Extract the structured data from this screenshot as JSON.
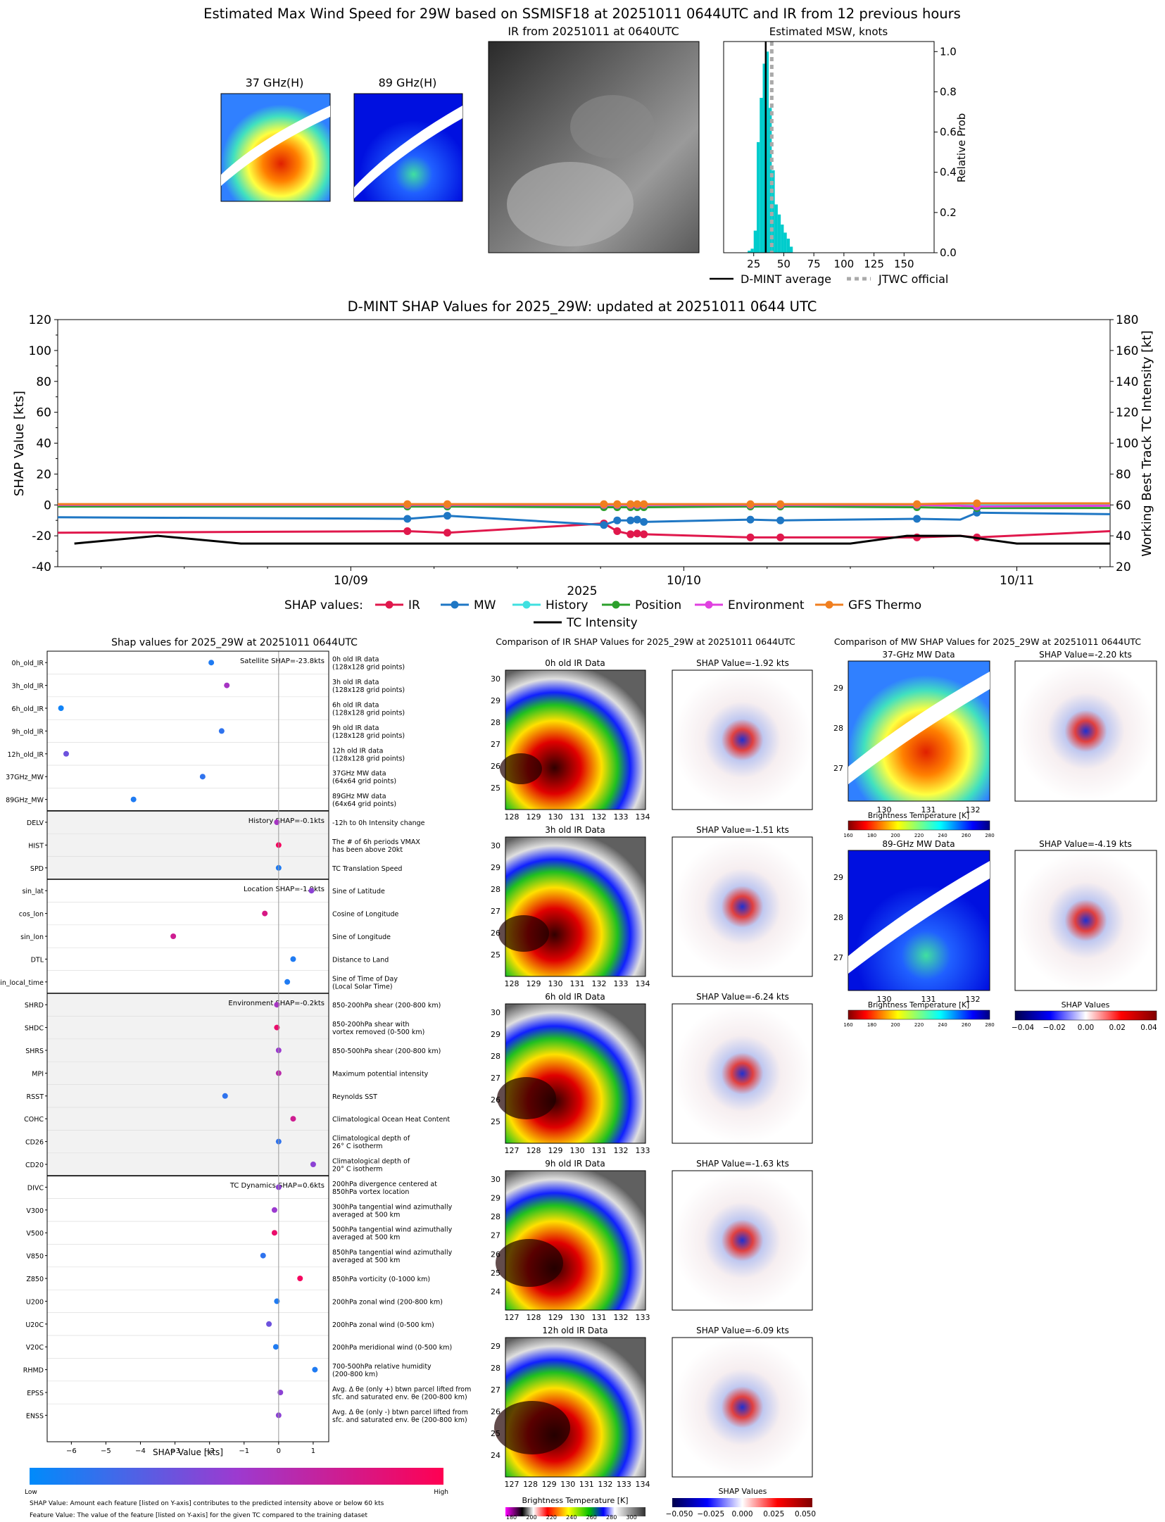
{
  "top": {
    "suptitle": "Estimated Max Wind Speed for 29W based on SSMISF18 at 20251011 0644UTC and IR from 12 previous hours",
    "panel_37_title": "37 GHz(H)",
    "panel_89_title": "89 GHz(H)",
    "panel_ir_title": "IR from 20251011 at 0640UTC",
    "hist": {
      "title": "Estimated MSW, knots",
      "ylabel": "Relative Prob",
      "xticks": [
        25,
        50,
        75,
        100,
        125,
        150
      ],
      "yticks": [
        0.0,
        0.2,
        0.4,
        0.6,
        0.8,
        1.0
      ],
      "bins": [
        {
          "x": 20,
          "p": 0.01
        },
        {
          "x": 22.5,
          "p": 0.02
        },
        {
          "x": 25,
          "p": 0.11
        },
        {
          "x": 27.5,
          "p": 0.55
        },
        {
          "x": 30,
          "p": 0.77
        },
        {
          "x": 32.5,
          "p": 0.94
        },
        {
          "x": 35,
          "p": 1.0
        },
        {
          "x": 37.5,
          "p": 0.72
        },
        {
          "x": 40,
          "p": 0.41
        },
        {
          "x": 42.5,
          "p": 0.24
        },
        {
          "x": 45,
          "p": 0.19
        },
        {
          "x": 47.5,
          "p": 0.14
        },
        {
          "x": 50,
          "p": 0.1
        },
        {
          "x": 52.5,
          "p": 0.07
        },
        {
          "x": 55,
          "p": 0.03
        }
      ],
      "dmint_average": 35,
      "jtwc_official": 40,
      "legend_dmint": "D-MINT average",
      "legend_jtwc": "JTWC official",
      "bar_color": "#00cccc"
    }
  },
  "chart_data": {
    "type": "line",
    "title": "D-MINT SHAP Values for 2025_29W: updated at 20251011 0644 UTC",
    "ylabel": "SHAP Value [kts]",
    "ylabel_right": "Working Best Track TC Intensity [kt]",
    "xlabel": "2025",
    "ylim": [
      -40,
      120
    ],
    "ylim_right": [
      20,
      180
    ],
    "yticks": [
      -40,
      -20,
      0,
      20,
      40,
      60,
      80,
      100,
      120
    ],
    "yticks_right": [
      20,
      40,
      60,
      80,
      100,
      120,
      140,
      160,
      180
    ],
    "xlim": [
      8.12,
      11.28
    ],
    "xticks": [
      {
        "v": 9.0,
        "label": "10/09"
      },
      {
        "v": 10.0,
        "label": "10/10"
      },
      {
        "v": 11.0,
        "label": "10/11"
      }
    ],
    "legend_title": "SHAP values:",
    "series": [
      {
        "name": "IR",
        "color": "#e0184c",
        "points": [
          [
            8.12,
            -18
          ],
          [
            9.17,
            -17
          ],
          [
            9.29,
            -18
          ],
          [
            9.76,
            -12
          ],
          [
            9.8,
            -17
          ],
          [
            9.84,
            -19
          ],
          [
            9.86,
            -18.5
          ],
          [
            9.88,
            -19
          ],
          [
            10.2,
            -21
          ],
          [
            10.29,
            -21
          ],
          [
            10.7,
            -21
          ],
          [
            10.83,
            -20
          ],
          [
            10.88,
            -21
          ],
          [
            11.28,
            -17
          ]
        ]
      },
      {
        "name": "MW",
        "color": "#1f77c4",
        "points": [
          [
            8.12,
            -8
          ],
          [
            9.17,
            -9
          ],
          [
            9.29,
            -7
          ],
          [
            9.76,
            -13
          ],
          [
            9.8,
            -10
          ],
          [
            9.84,
            -10
          ],
          [
            9.86,
            -9.5
          ],
          [
            9.88,
            -11
          ],
          [
            10.2,
            -9.5
          ],
          [
            10.29,
            -10
          ],
          [
            10.7,
            -9
          ],
          [
            10.83,
            -9.5
          ],
          [
            10.88,
            -5
          ],
          [
            11.28,
            -6
          ]
        ]
      },
      {
        "name": "History",
        "color": "#40e0e0",
        "points": [
          [
            8.12,
            0
          ],
          [
            9.17,
            0
          ],
          [
            9.29,
            0
          ],
          [
            9.76,
            0
          ],
          [
            9.8,
            0
          ],
          [
            9.84,
            0
          ],
          [
            9.86,
            0
          ],
          [
            9.88,
            0
          ],
          [
            10.2,
            0
          ],
          [
            10.29,
            0
          ],
          [
            10.7,
            0
          ],
          [
            10.83,
            0
          ],
          [
            10.88,
            0
          ],
          [
            11.28,
            0
          ]
        ]
      },
      {
        "name": "Position",
        "color": "#2ca02c",
        "points": [
          [
            8.12,
            -1
          ],
          [
            9.17,
            -1
          ],
          [
            9.29,
            -1
          ],
          [
            9.76,
            -1.5
          ],
          [
            9.8,
            -1.5
          ],
          [
            9.84,
            -1.5
          ],
          [
            9.86,
            -1.5
          ],
          [
            9.88,
            -1.5
          ],
          [
            10.2,
            -1
          ],
          [
            10.29,
            -1
          ],
          [
            10.7,
            -1.5
          ],
          [
            10.83,
            -2
          ],
          [
            10.88,
            -2
          ],
          [
            11.28,
            -2
          ]
        ]
      },
      {
        "name": "Environment",
        "color": "#e040e0",
        "points": [
          [
            8.12,
            0
          ],
          [
            9.17,
            0
          ],
          [
            9.29,
            0
          ],
          [
            9.76,
            0
          ],
          [
            9.8,
            0
          ],
          [
            9.84,
            0
          ],
          [
            9.86,
            0
          ],
          [
            9.88,
            0
          ],
          [
            10.2,
            0
          ],
          [
            10.29,
            0
          ],
          [
            10.7,
            0
          ],
          [
            10.83,
            -0.5
          ],
          [
            10.88,
            -1
          ],
          [
            11.28,
            -0.5
          ]
        ]
      },
      {
        "name": "GFS Thermo",
        "color": "#f07f20",
        "points": [
          [
            8.12,
            0.5
          ],
          [
            9.17,
            0.5
          ],
          [
            9.29,
            0.5
          ],
          [
            9.76,
            0.5
          ],
          [
            9.8,
            0.5
          ],
          [
            9.84,
            0.5
          ],
          [
            9.86,
            0.5
          ],
          [
            9.88,
            0.5
          ],
          [
            10.2,
            0.5
          ],
          [
            10.29,
            0.5
          ],
          [
            10.7,
            0.5
          ],
          [
            10.83,
            1
          ],
          [
            10.88,
            1
          ],
          [
            11.28,
            1
          ]
        ]
      }
    ],
    "marker_times": [
      9.17,
      9.29,
      9.76,
      9.8,
      9.84,
      9.86,
      9.88,
      10.2,
      10.29,
      10.7,
      10.88
    ],
    "intensity": {
      "name": "TC Intensity",
      "color": "#000000",
      "points": [
        [
          8.17,
          35
        ],
        [
          8.42,
          40
        ],
        [
          8.67,
          35
        ],
        [
          9.67,
          35
        ],
        [
          10.17,
          35
        ],
        [
          10.5,
          35
        ],
        [
          10.67,
          40
        ],
        [
          10.83,
          40
        ],
        [
          11.0,
          35
        ],
        [
          11.28,
          35
        ]
      ]
    }
  },
  "shap_features": {
    "title": "Shap values for 2025_29W at 20251011 0644UTC",
    "xlabel": "SHAP Value [kts]",
    "xticks": [
      -6,
      -5,
      -4,
      -3,
      -2,
      -1,
      0,
      1
    ],
    "xlim": [
      -6.7,
      1.45
    ],
    "colorbar_low": "Low",
    "colorbar_high": "High",
    "footnote1": "SHAP Value: Amount each feature [listed on Y-axis] contributes to the predicted intensity above or below 60 kts",
    "footnote2": "Feature Value: The value of the feature [listed on Y-axis] for the given TC compared to the training dataset",
    "groups": [
      {
        "label": "Satellite SHAP=-23.8kts",
        "shade": false,
        "features": [
          {
            "name": "0h_old_IR",
            "desc": [
              "0h old IR data",
              "(128x128 grid points)"
            ],
            "v": -1.95,
            "c": 0.1
          },
          {
            "name": "3h_old_IR",
            "desc": [
              "3h old IR data",
              "(128x128 grid points)"
            ],
            "v": -1.5,
            "c": 0.55
          },
          {
            "name": "6h_old_IR",
            "desc": [
              "6h old IR data",
              "(128x128 grid points)"
            ],
            "v": -6.3,
            "c": 0.05
          },
          {
            "name": "9h_old_IR",
            "desc": [
              "9h old IR data",
              "(128x128 grid points)"
            ],
            "v": -1.65,
            "c": 0.15
          },
          {
            "name": "12h_old_IR",
            "desc": [
              "12h old IR data",
              "(128x128 grid points)"
            ],
            "v": -6.15,
            "c": 0.35
          },
          {
            "name": "37GHz_MW",
            "desc": [
              "37GHz MW data",
              "(64x64 grid points)"
            ],
            "v": -2.2,
            "c": 0.15
          },
          {
            "name": "89GHz_MW",
            "desc": [
              "89GHz MW data",
              "(64x64 grid points)"
            ],
            "v": -4.2,
            "c": 0.1
          }
        ]
      },
      {
        "label": "History SHAP=-0.1kts",
        "shade": true,
        "features": [
          {
            "name": "DELV",
            "desc": [
              "-12h to 0h Intensity change"
            ],
            "v": -0.05,
            "c": 0.55
          },
          {
            "name": "HIST",
            "desc": [
              "The # of 6h periods VMAX",
              "has been above 20kt"
            ],
            "v": 0.0,
            "c": 0.95
          },
          {
            "name": "SPD",
            "desc": [
              "TC Translation Speed"
            ],
            "v": 0.0,
            "c": 0.1
          }
        ]
      },
      {
        "label": "Location SHAP=-1.9kts",
        "shade": false,
        "features": [
          {
            "name": "sin_lat",
            "desc": [
              "Sine of Latitude"
            ],
            "v": 0.95,
            "c": 0.45
          },
          {
            "name": "cos_lon",
            "desc": [
              "Cosine of Longitude"
            ],
            "v": -0.4,
            "c": 0.8
          },
          {
            "name": "sin_lon",
            "desc": [
              "Sine of Longitude"
            ],
            "v": -3.05,
            "c": 0.75
          },
          {
            "name": "DTL",
            "desc": [
              "Distance to Land"
            ],
            "v": 0.42,
            "c": 0.1
          },
          {
            "name": "sin_local_time",
            "desc": [
              "Sine of Time of Day",
              "(Local Solar Time)"
            ],
            "v": 0.25,
            "c": 0.1
          }
        ]
      },
      {
        "label": "Environment SHAP=-0.2kts",
        "shade": true,
        "features": [
          {
            "name": "SHRD",
            "desc": [
              "850-200hPa shear (200-800 km)"
            ],
            "v": -0.05,
            "c": 0.55
          },
          {
            "name": "SHDC",
            "desc": [
              "850-200hPa shear with",
              "vortex removed (0-500 km)"
            ],
            "v": -0.05,
            "c": 0.9
          },
          {
            "name": "SHRS",
            "desc": [
              "850-500hPa shear (200-800 km)"
            ],
            "v": 0.0,
            "c": 0.5
          },
          {
            "name": "MPI",
            "desc": [
              "Maximum potential intensity"
            ],
            "v": 0.0,
            "c": 0.65
          },
          {
            "name": "RSST",
            "desc": [
              "Reynolds SST"
            ],
            "v": -1.55,
            "c": 0.15
          },
          {
            "name": "COHC",
            "desc": [
              "Climatological Ocean Heat Content"
            ],
            "v": 0.42,
            "c": 0.75
          },
          {
            "name": "CD26",
            "desc": [
              "Climatological depth of",
              "26° C isotherm"
            ],
            "v": 0.0,
            "c": 0.15
          },
          {
            "name": "CD20",
            "desc": [
              "Climatological depth of",
              "20° C isotherm"
            ],
            "v": 1.0,
            "c": 0.45
          }
        ]
      },
      {
        "label": "TC Dynamics SHAP=0.6kts",
        "shade": false,
        "features": [
          {
            "name": "DIVC",
            "desc": [
              "200hPa divergence centered at",
              "850hPa vortex location"
            ],
            "v": 0.0,
            "c": 0.45
          },
          {
            "name": "V300",
            "desc": [
              "300hPa tangential wind azimuthally",
              "averaged at 500 km"
            ],
            "v": -0.12,
            "c": 0.5
          },
          {
            "name": "V500",
            "desc": [
              "500hPa tangential wind azimuthally",
              "averaged at 500 km"
            ],
            "v": -0.12,
            "c": 0.9
          },
          {
            "name": "V850",
            "desc": [
              "850hPa tangential wind azimuthally",
              "averaged at 500 km"
            ],
            "v": -0.45,
            "c": 0.15
          },
          {
            "name": "Z850",
            "desc": [
              "850hPa vorticity (0-1000 km)"
            ],
            "v": 0.62,
            "c": 0.95
          },
          {
            "name": "U200",
            "desc": [
              "200hPa zonal wind (200-800 km)"
            ],
            "v": -0.05,
            "c": 0.1
          },
          {
            "name": "U20C",
            "desc": [
              "200hPa zonal wind (0-500 km)"
            ],
            "v": -0.28,
            "c": 0.35
          },
          {
            "name": "V20C",
            "desc": [
              "200hPa meridional wind (0-500 km)"
            ],
            "v": -0.08,
            "c": 0.1
          },
          {
            "name": "RHMD",
            "desc": [
              "700-500hPa relative humidity",
              "(200-800 km)"
            ],
            "v": 1.05,
            "c": 0.1
          },
          {
            "name": "EPSS",
            "desc": [
              "Avg. Δ θe (only +) btwn parcel lifted from",
              "sfc. and saturated env. θe (200-800 km)"
            ],
            "v": 0.05,
            "c": 0.45
          },
          {
            "name": "ENSS",
            "desc": [
              "Avg. Δ θe (only -) btwn parcel lifted from",
              "sfc. and saturated env. θe (200-800 km)"
            ],
            "v": 0.0,
            "c": 0.45
          }
        ]
      }
    ]
  },
  "ir_compare": {
    "title": "Comparison of IR SHAP Values for 2025_29W at 20251011 0644UTC",
    "rows": [
      {
        "data_title": "0h old IR Data",
        "shap_title": "SHAP Value=-1.92 kts",
        "yticks": [
          "30",
          "29",
          "28",
          "27",
          "26",
          "25"
        ],
        "xticks": [
          "128",
          "129",
          "130",
          "131",
          "132",
          "133",
          "134"
        ]
      },
      {
        "data_title": "3h old IR Data",
        "shap_title": "SHAP Value=-1.51 kts",
        "yticks": [
          "30",
          "29",
          "28",
          "27",
          "26",
          "25"
        ],
        "xticks": [
          "128",
          "129",
          "130",
          "131",
          "132",
          "133",
          "134"
        ]
      },
      {
        "data_title": "6h old IR Data",
        "shap_title": "SHAP Value=-6.24 kts",
        "yticks": [
          "30",
          "29",
          "28",
          "27",
          "26",
          "25"
        ],
        "xticks": [
          "127",
          "128",
          "129",
          "130",
          "131",
          "132",
          "133"
        ]
      },
      {
        "data_title": "9h old IR Data",
        "shap_title": "SHAP Value=-1.63 kts",
        "yticks": [
          "30",
          "29",
          "28",
          "27",
          "26",
          "25",
          "24"
        ],
        "xticks": [
          "127",
          "128",
          "129",
          "130",
          "131",
          "132",
          "133"
        ]
      },
      {
        "data_title": "12h old IR Data",
        "shap_title": "SHAP Value=-6.09 kts",
        "yticks": [
          "29",
          "28",
          "27",
          "26",
          "25",
          "24"
        ],
        "xticks": [
          "127",
          "128",
          "129",
          "130",
          "131",
          "132",
          "133",
          "134"
        ]
      }
    ],
    "cbar_label": "Brightness Temperature [K]",
    "cbar_ticks": [
      "180",
      "200",
      "220",
      "240",
      "260",
      "280",
      "300"
    ],
    "shap_cbar_label": "SHAP Values",
    "shap_cbar_ticks": [
      "−0.050",
      "−0.025",
      "0.000",
      "0.025",
      "0.050"
    ]
  },
  "mw_compare": {
    "title": "Comparison of MW SHAP Values for 2025_29W at 20251011 0644UTC",
    "rows": [
      {
        "data_title": "37-GHz MW Data",
        "shap_title": "SHAP Value=-2.20 kts"
      },
      {
        "data_title": "89-GHz MW Data",
        "shap_title": "SHAP Value=-4.19 kts"
      }
    ],
    "yticks": [
      "29",
      "28",
      "27"
    ],
    "xticks": [
      "130",
      "131",
      "132"
    ],
    "cbar_label": "Brightness Temperature [K]",
    "cbar_ticks": [
      "160",
      "180",
      "200",
      "220",
      "240",
      "260",
      "280"
    ],
    "shap_cbar_label": "SHAP Values",
    "shap_cbar_ticks": [
      "−0.04",
      "−0.02",
      "0.00",
      "0.02",
      "0.04"
    ]
  }
}
